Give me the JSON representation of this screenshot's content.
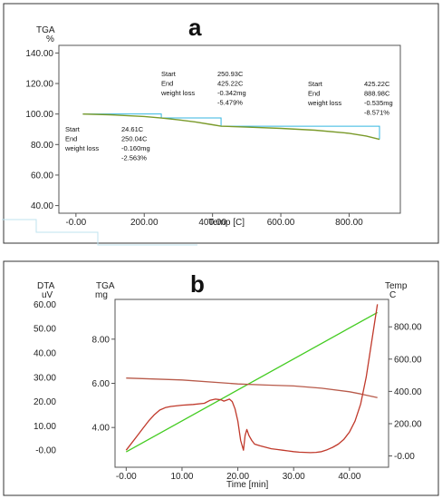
{
  "chart_data": [
    {
      "type": "line",
      "panel_label": "a",
      "xlabel": "Temp [C]",
      "ylabel": "TGA",
      "ylabel_unit": "%",
      "xlim": [
        -50,
        950
      ],
      "ylim": [
        35,
        145
      ],
      "x_ticks": [
        "-0.00",
        "200.00",
        "400.00",
        "600.00",
        "800.00"
      ],
      "y_ticks": [
        "40.00",
        "60.00",
        "80.00",
        "100.00",
        "120.00",
        "140.00"
      ],
      "series": [
        {
          "color": "#7a9a2a",
          "x": [
            20,
            100,
            200,
            250,
            300,
            350,
            400,
            425,
            500,
            600,
            700,
            800,
            850,
            889
          ],
          "y": [
            100,
            99.5,
            98.4,
            97.4,
            96.2,
            94.8,
            93.0,
            92.0,
            91.4,
            90.6,
            89.4,
            87.4,
            85.6,
            83.4
          ]
        }
      ],
      "annotations": [
        {
          "lines": [
            "Start",
            "End",
            "weight loss",
            ""
          ],
          "values": [
            "24.61C",
            "250.04C",
            "-0.160mg",
            "-2.563%"
          ]
        },
        {
          "lines": [
            "Start",
            "End",
            "weight loss",
            ""
          ],
          "values": [
            "250.93C",
            "425.22C",
            "-0.342mg",
            "-5.479%"
          ]
        },
        {
          "lines": [
            "Start",
            "End",
            "weight loss",
            ""
          ],
          "values": [
            "425.22C",
            "888.98C",
            "-0.535mg",
            "-8.571%"
          ]
        }
      ]
    },
    {
      "type": "line",
      "panel_label": "b",
      "xlabel": "Time [min]",
      "xlim": [
        -2,
        47
      ],
      "x_ticks": [
        "-0.00",
        "10.00",
        "20.00",
        "30.00",
        "40.00"
      ],
      "axes": {
        "dta": {
          "label": "DTA",
          "unit": "uV",
          "ylim": [
            -7,
            62
          ],
          "ticks": [
            "-0.00",
            "10.00",
            "20.00",
            "30.00",
            "40.00",
            "50.00",
            "60.00"
          ]
        },
        "tga": {
          "label": "TGA",
          "unit": "mg",
          "ylim": [
            2.2,
            9.8
          ],
          "ticks": [
            "4.00",
            "6.00",
            "8.00"
          ]
        },
        "temp": {
          "label": "Temp",
          "unit": "C",
          "ylim": [
            -70,
            970
          ],
          "ticks": [
            "-0.00",
            "200.00",
            "400.00",
            "600.00",
            "800.00"
          ]
        }
      },
      "series": [
        {
          "axis": "temp",
          "color": "#44cc22",
          "x": [
            0,
            45
          ],
          "y": [
            25,
            889
          ]
        },
        {
          "axis": "tga",
          "color": "#b85a4a",
          "x": [
            0,
            10,
            20,
            25,
            30,
            35,
            40,
            42,
            45
          ],
          "y": [
            6.24,
            6.15,
            5.97,
            5.92,
            5.88,
            5.78,
            5.62,
            5.52,
            5.35
          ]
        },
        {
          "axis": "dta",
          "color": "#c0392b",
          "x": [
            0,
            1,
            2,
            3,
            4,
            5,
            6,
            7,
            8,
            10,
            12,
            14,
            15,
            16,
            17,
            17.5,
            18,
            18.5,
            19,
            19.5,
            20,
            20.5,
            21,
            21.3,
            21.6,
            22,
            22.5,
            23,
            24,
            25,
            26,
            27,
            28,
            29,
            30,
            31,
            32,
            33,
            34,
            35,
            36,
            37,
            38,
            39,
            40,
            41,
            42,
            43,
            44,
            45
          ],
          "y": [
            0,
            3,
            6,
            9,
            12,
            14.5,
            16.5,
            17.5,
            18,
            18.5,
            18.8,
            19.3,
            20.5,
            21,
            20.7,
            20.2,
            20.6,
            21,
            20,
            17,
            12,
            4,
            0,
            6,
            8.5,
            6,
            4,
            2.5,
            1.8,
            1.2,
            0.6,
            0.3,
            0,
            -0.3,
            -0.6,
            -0.8,
            -0.9,
            -1,
            -0.9,
            -0.6,
            0.2,
            1.2,
            2.5,
            4.5,
            7.5,
            12,
            19,
            30,
            45,
            60
          ]
        }
      ]
    }
  ]
}
